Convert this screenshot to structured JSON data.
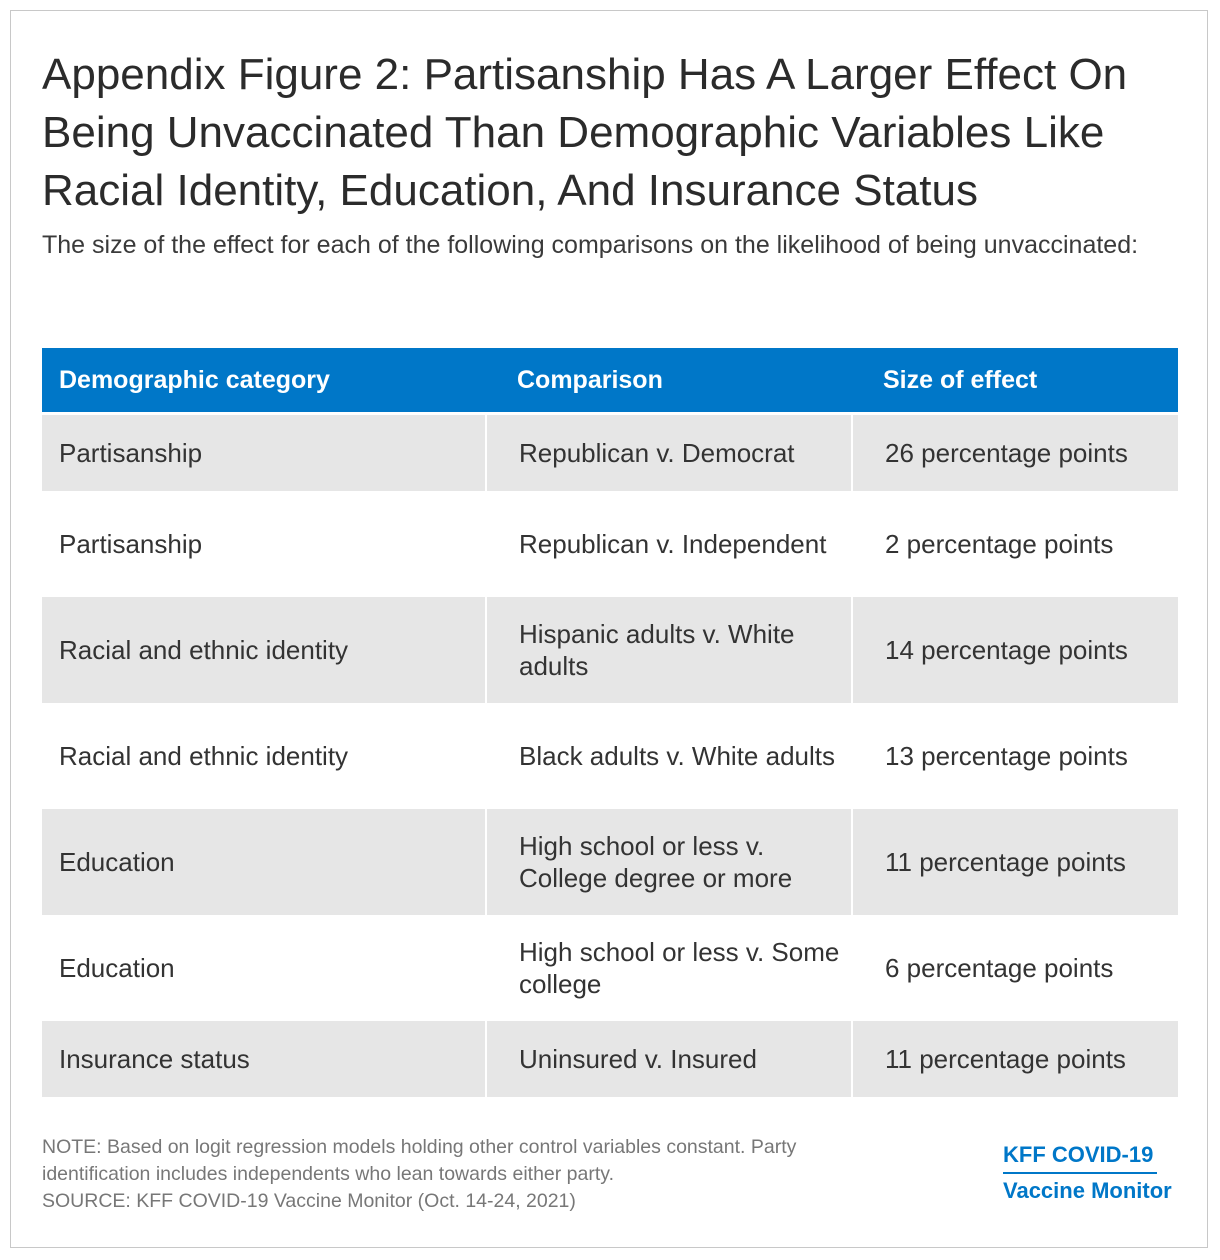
{
  "title": "Appendix Figure 2: Partisanship Has A Larger Effect On Being Unvaccinated Than Demographic Variables Like Racial Identity, Education, And Insurance Status",
  "subtitle": "The size of the effect for each of the following comparisons on the likelihood of being unvaccinated:",
  "table": {
    "headers": [
      "Demographic category",
      "Comparison",
      "Size of effect"
    ],
    "rows": [
      {
        "category": "Partisanship",
        "comparison": "Republican v. Democrat",
        "effect": "26 percentage points"
      },
      {
        "category": "Partisanship",
        "comparison": "Republican v. Independent",
        "effect": "2 percentage points"
      },
      {
        "category": "Racial and ethnic identity",
        "comparison": "Hispanic adults v. White adults",
        "effect": "14 percentage points"
      },
      {
        "category": "Racial and ethnic identity",
        "comparison": "Black adults v. White adults",
        "effect": "13 percentage points"
      },
      {
        "category": "Education",
        "comparison": "High school or less v. College degree or more",
        "effect": "11 percentage points"
      },
      {
        "category": "Education",
        "comparison": "High school or less v. Some college",
        "effect": "6 percentage points"
      },
      {
        "category": "Insurance status",
        "comparison": "Uninsured v. Insured",
        "effect": "11 percentage points"
      }
    ]
  },
  "note_lines": [
    "NOTE: Based on logit regression models holding other control variables constant. Party",
    "identification includes independents who lean towards either party.",
    "SOURCE: KFF COVID-19 Vaccine Monitor (Oct. 14-24, 2021)"
  ],
  "logo": {
    "line1": "KFF COVID-19",
    "line2": "Vaccine Monitor"
  },
  "colors": {
    "header_bg": "#0077c8",
    "row_shade": "#e6e6e6",
    "logo": "#0077c8"
  }
}
